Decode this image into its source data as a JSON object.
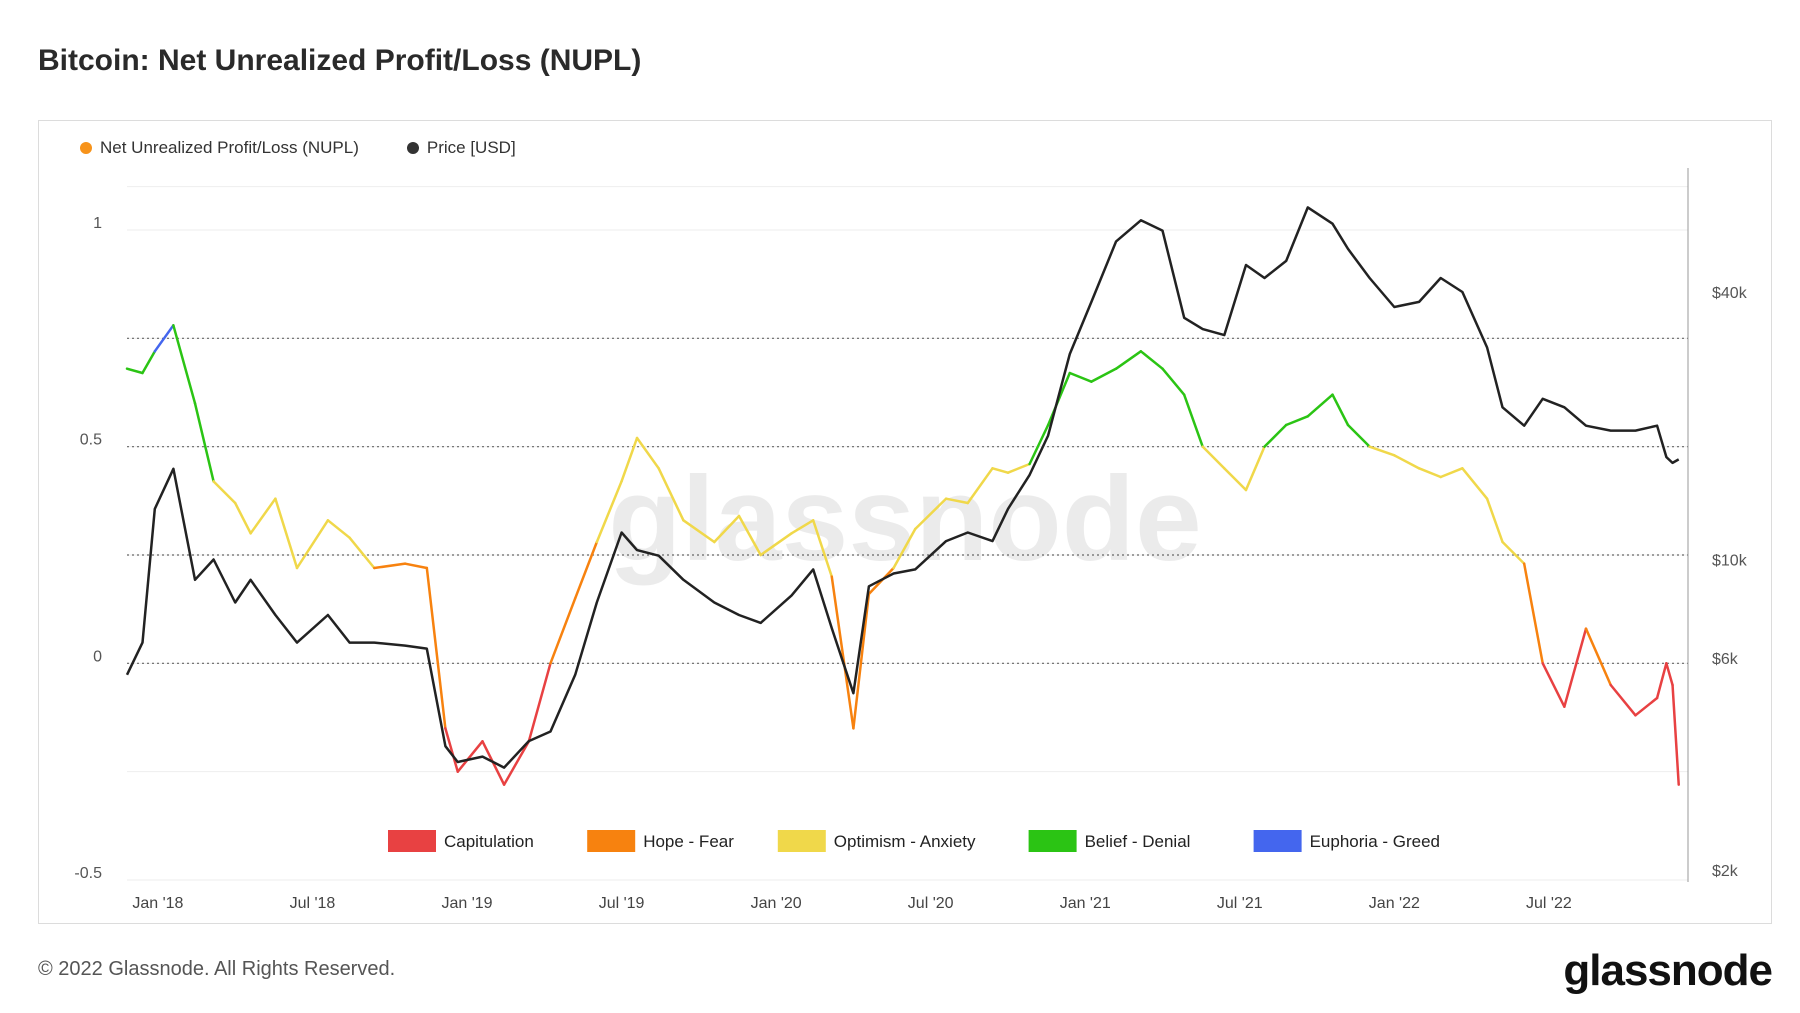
{
  "title": "Bitcoin: Net Unrealized Profit/Loss (NUPL)",
  "footer": "© 2022 Glassnode. All Rights Reserved.",
  "brand": "glassnode",
  "watermark": "glassnode",
  "legend_top": [
    {
      "label": "Net Unrealized Profit/Loss (NUPL)",
      "color": "#f7931a"
    },
    {
      "label": "Price [USD]",
      "color": "#333333"
    }
  ],
  "chart_data": {
    "type": "line",
    "title": "Bitcoin: Net Unrealized Profit/Loss (NUPL)",
    "x_ticks": [
      "Jan '18",
      "Jul '18",
      "Jan '19",
      "Jul '19",
      "Jan '20",
      "Jul '20",
      "Jan '21",
      "Jul '21",
      "Jan '22",
      "Jul '22"
    ],
    "x_tick_years": [
      2018.0,
      2018.5,
      2019.0,
      2019.5,
      2020.0,
      2020.5,
      2021.0,
      2021.5,
      2022.0,
      2022.5
    ],
    "x_range": [
      2017.9,
      2022.95
    ],
    "y_left": {
      "ticks": [
        1,
        0.5,
        0,
        -0.5
      ],
      "tick_labels": [
        "1",
        "0.5",
        "0",
        "-0.5"
      ],
      "range": [
        -0.5,
        1.15
      ]
    },
    "y_right": {
      "ticks": [
        40000,
        10000,
        6000,
        2000
      ],
      "tick_labels": [
        "$40k",
        "$10k",
        "$6k",
        "$2k"
      ],
      "scale": "log"
    },
    "zones": [
      {
        "name": "Capitulation",
        "color": "#e84142",
        "from": -1,
        "to": 0
      },
      {
        "name": "Hope - Fear",
        "color": "#f7820f",
        "from": 0,
        "to": 0.25
      },
      {
        "name": "Optimism - Anxiety",
        "color": "#f0d84a",
        "from": 0.25,
        "to": 0.5
      },
      {
        "name": "Belief - Denial",
        "color": "#2bc414",
        "from": 0.5,
        "to": 0.75
      },
      {
        "name": "Euphoria - Greed",
        "color": "#4466ee",
        "from": 0.75,
        "to": 1
      }
    ],
    "series": [
      {
        "name": "Net Unrealized Profit/Loss (NUPL)",
        "axis": "left",
        "x": [
          2017.9,
          2017.95,
          2017.99,
          2018.05,
          2018.12,
          2018.18,
          2018.25,
          2018.3,
          2018.38,
          2018.45,
          2018.55,
          2018.62,
          2018.7,
          2018.8,
          2018.87,
          2018.93,
          2018.97,
          2019.05,
          2019.12,
          2019.2,
          2019.27,
          2019.35,
          2019.42,
          2019.5,
          2019.55,
          2019.62,
          2019.7,
          2019.8,
          2019.88,
          2019.95,
          2020.05,
          2020.12,
          2020.18,
          2020.25,
          2020.3,
          2020.38,
          2020.45,
          2020.55,
          2020.62,
          2020.7,
          2020.75,
          2020.82,
          2020.88,
          2020.95,
          2021.02,
          2021.1,
          2021.18,
          2021.25,
          2021.32,
          2021.38,
          2021.45,
          2021.52,
          2021.58,
          2021.65,
          2021.72,
          2021.8,
          2021.85,
          2021.92,
          2022.0,
          2022.08,
          2022.15,
          2022.22,
          2022.3,
          2022.35,
          2022.42,
          2022.48,
          2022.55,
          2022.62,
          2022.7,
          2022.78,
          2022.85,
          2022.88,
          2022.9,
          2022.92
        ],
        "y": [
          0.68,
          0.67,
          0.72,
          0.78,
          0.6,
          0.42,
          0.37,
          0.3,
          0.38,
          0.22,
          0.33,
          0.29,
          0.22,
          0.23,
          0.22,
          -0.15,
          -0.25,
          -0.18,
          -0.28,
          -0.18,
          0.0,
          0.15,
          0.28,
          0.42,
          0.52,
          0.45,
          0.33,
          0.28,
          0.34,
          0.25,
          0.3,
          0.33,
          0.2,
          -0.15,
          0.16,
          0.22,
          0.31,
          0.38,
          0.37,
          0.45,
          0.44,
          0.46,
          0.55,
          0.67,
          0.65,
          0.68,
          0.72,
          0.68,
          0.62,
          0.5,
          0.45,
          0.4,
          0.5,
          0.55,
          0.57,
          0.62,
          0.55,
          0.5,
          0.48,
          0.45,
          0.43,
          0.45,
          0.38,
          0.28,
          0.23,
          0.0,
          -0.1,
          0.08,
          -0.05,
          -0.12,
          -0.08,
          0.0,
          -0.05,
          -0.28
        ]
      },
      {
        "name": "Price [USD]",
        "axis": "right",
        "x": [
          2017.9,
          2017.95,
          2017.99,
          2018.05,
          2018.12,
          2018.18,
          2018.25,
          2018.3,
          2018.38,
          2018.45,
          2018.55,
          2018.62,
          2018.7,
          2018.8,
          2018.87,
          2018.93,
          2018.97,
          2019.05,
          2019.12,
          2019.2,
          2019.27,
          2019.35,
          2019.42,
          2019.5,
          2019.55,
          2019.62,
          2019.7,
          2019.8,
          2019.88,
          2019.95,
          2020.05,
          2020.12,
          2020.18,
          2020.25,
          2020.3,
          2020.38,
          2020.45,
          2020.55,
          2020.62,
          2020.7,
          2020.75,
          2020.82,
          2020.88,
          2020.95,
          2021.02,
          2021.1,
          2021.18,
          2021.25,
          2021.32,
          2021.38,
          2021.45,
          2021.52,
          2021.58,
          2021.65,
          2021.72,
          2021.8,
          2021.85,
          2021.92,
          2022.0,
          2022.08,
          2022.15,
          2022.22,
          2022.3,
          2022.35,
          2022.42,
          2022.48,
          2022.55,
          2022.62,
          2022.7,
          2022.78,
          2022.85,
          2022.88,
          2022.9,
          2022.92
        ],
        "y": [
          5500,
          6500,
          13000,
          16000,
          9000,
          10000,
          8000,
          9000,
          7500,
          6500,
          7500,
          6500,
          6500,
          6400,
          6300,
          3800,
          3500,
          3600,
          3400,
          3900,
          4100,
          5500,
          8000,
          11500,
          10500,
          10200,
          9000,
          8000,
          7500,
          7200,
          8300,
          9500,
          7000,
          5000,
          8700,
          9300,
          9500,
          11000,
          11500,
          11000,
          13000,
          15500,
          19000,
          29000,
          38000,
          52000,
          58000,
          55000,
          35000,
          33000,
          32000,
          46000,
          43000,
          47000,
          62000,
          57000,
          50000,
          43000,
          37000,
          38000,
          43000,
          40000,
          30000,
          22000,
          20000,
          23000,
          22000,
          20000,
          19500,
          19500,
          20000,
          17000,
          16500,
          16800
        ]
      }
    ]
  }
}
